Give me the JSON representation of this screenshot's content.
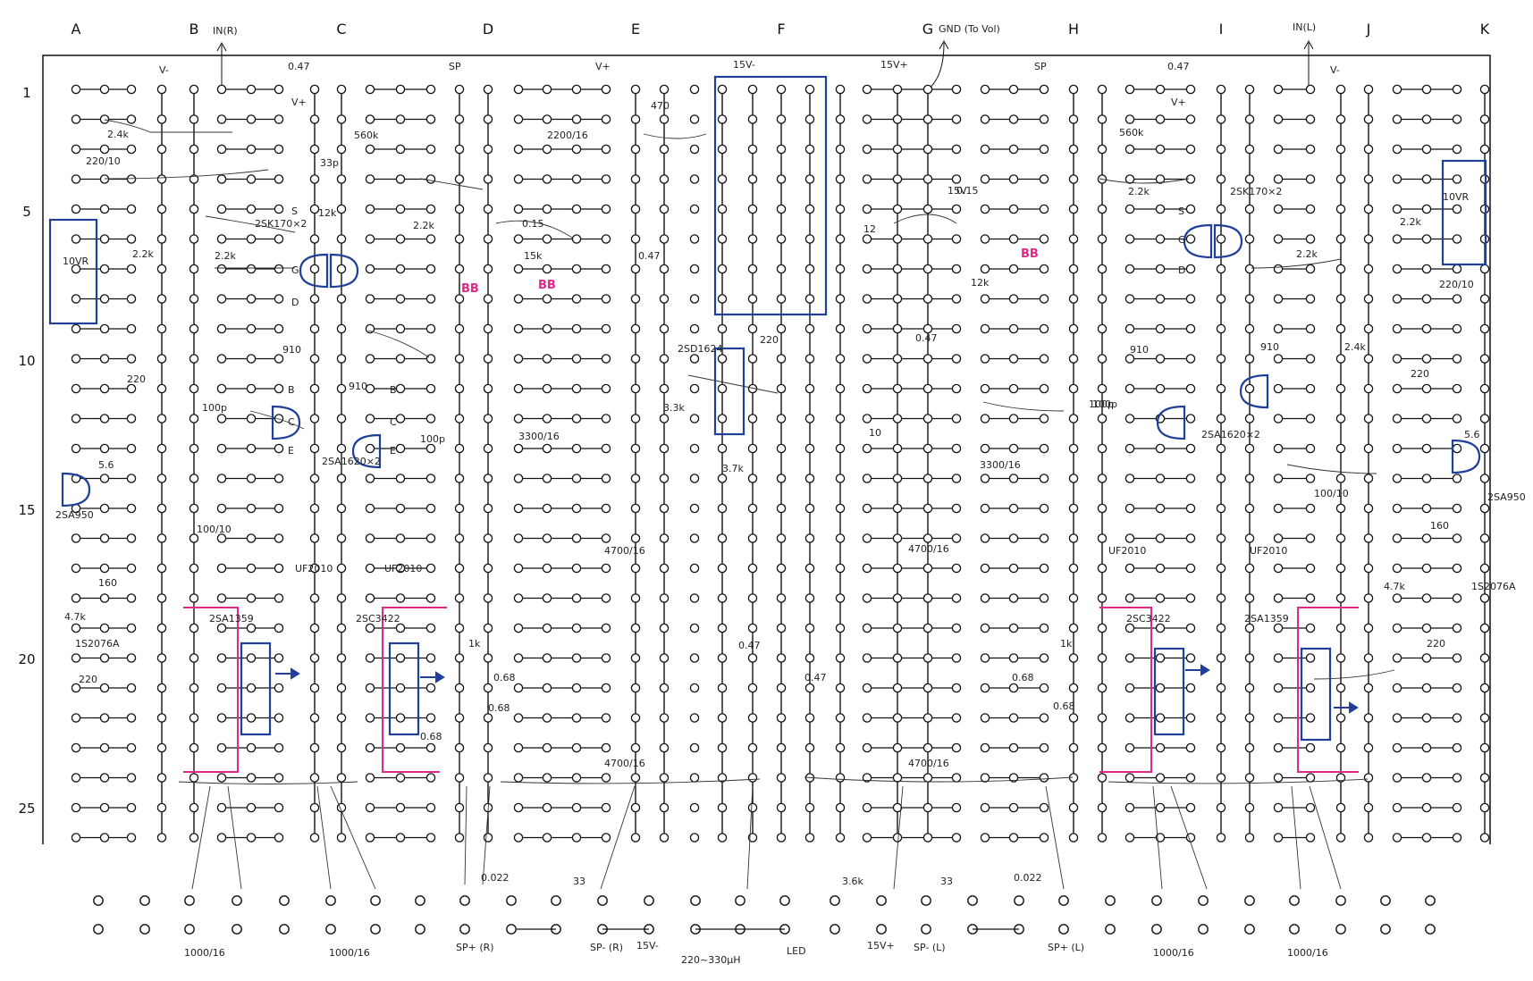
{
  "columns": [
    "A",
    "B",
    "C",
    "D",
    "E",
    "F",
    "G",
    "H",
    "I",
    "J",
    "K"
  ],
  "rows": [
    "1",
    "5",
    "10",
    "15",
    "20",
    "25"
  ],
  "top_labels": [
    "V-",
    "IN(R)",
    "0.47",
    "V+",
    "SP",
    "V+",
    "15V-",
    "15V+",
    "GND (To Vol)",
    "SP",
    "0.47",
    "V+",
    "IN(L)",
    "V-"
  ],
  "component_labels": [
    "2.4k",
    "220/10",
    "10VR",
    "2.2k",
    "2.2k",
    "2SK170×2",
    "33p",
    "12k",
    "560k",
    "2.2k",
    "910",
    "220",
    "100p",
    "2SA1620×2",
    "910",
    "100p",
    "5.6",
    "2SA950",
    "100/10",
    "160",
    "4.7k",
    "1S2076A",
    "UF2010",
    "UF2010",
    "2SA1359",
    "2SC3422",
    "1k",
    "0.68",
    "0.68",
    "0.68",
    "220",
    "2200/16",
    "0.15",
    "15k",
    "0.47",
    "470",
    "2SD1624",
    "3.3k",
    "3300/16",
    "3.7k",
    "4700/16",
    "4700/16",
    "220",
    "12",
    "10",
    "0.47",
    "0.47",
    "0.47",
    "15V",
    "0.15",
    "12k",
    "3300/16",
    "4700/16",
    "4700/16",
    "0.68",
    "1k",
    "2SC3422",
    "2SA1359",
    "UF2010",
    "UF2010",
    "910",
    "910",
    "100p",
    "2.2k",
    "2SK170×2",
    "560k",
    "2.2k",
    "10VR",
    "2.2k",
    "220/10",
    "2.4k",
    "220",
    "100p",
    "5.6",
    "2SA950",
    "100/10",
    "160",
    "4.7k",
    "1S2076A",
    "220",
    "2SA1620×2",
    "0.68"
  ],
  "pin_labels": [
    "G",
    "S",
    "D",
    "B",
    "C",
    "E",
    "B",
    "C",
    "E",
    "G",
    "S",
    "D"
  ],
  "bb_marks": [
    "BB",
    "BB",
    "BB"
  ],
  "bottom_labels": [
    "1000/16",
    "1000/16",
    "0.022",
    "33",
    "SP+ (R)",
    "SP- (R)",
    "15V-",
    "220~330μH",
    "LED",
    "3.6k",
    "15V+",
    "33",
    "SP- (L)",
    "0.022",
    "SP+ (L)",
    "1000/16",
    "1000/16"
  ],
  "colors": {
    "trace": "#111111",
    "component": "#1f3f9a",
    "highlight": "#e0288a",
    "grid": "#222222"
  }
}
